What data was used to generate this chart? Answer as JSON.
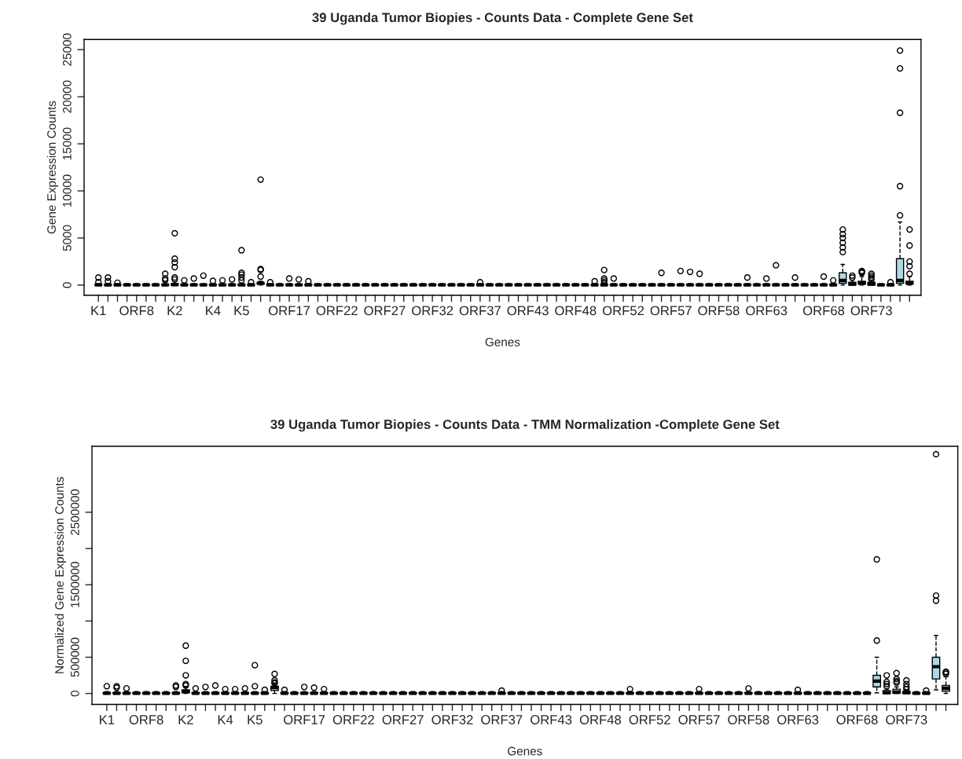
{
  "chart_data": [
    {
      "type": "box",
      "title": "39 Uganda Tumor Biopies - Counts Data - Complete Gene Set",
      "xlabel": "Genes",
      "ylabel": "Gene Expression Counts",
      "categories": [
        "K1",
        null,
        null,
        null,
        "ORF8",
        null,
        null,
        null,
        "K2",
        null,
        null,
        null,
        "K4",
        null,
        null,
        "K5",
        null,
        null,
        null,
        null,
        "ORF17",
        null,
        null,
        null,
        null,
        "ORF22",
        null,
        null,
        null,
        null,
        "ORF27",
        null,
        null,
        null,
        null,
        "ORF32",
        null,
        null,
        null,
        null,
        "ORF37",
        null,
        null,
        null,
        null,
        "ORF43",
        null,
        null,
        null,
        null,
        "ORF48",
        null,
        null,
        null,
        null,
        "ORF52",
        null,
        null,
        null,
        null,
        "ORF57",
        null,
        null,
        null,
        null,
        "ORF58",
        null,
        null,
        null,
        null,
        "ORF63",
        null,
        null,
        null,
        null,
        null,
        "ORF68",
        null,
        null,
        null,
        null,
        "ORF73",
        null,
        null,
        null,
        null
      ],
      "ylim": [
        -1080,
        26080
      ],
      "yticks": [
        0,
        5000,
        10000,
        15000,
        20000,
        25000
      ],
      "series": [
        {
          "color": "#add8e6",
          "boxes": [
            {
              "low": 0,
              "q1": 0,
              "median": 20,
              "q3": 60,
              "high": 150,
              "outliers": [
                800,
                300
              ]
            },
            {
              "low": 0,
              "q1": 0,
              "median": 20,
              "q3": 60,
              "high": 150,
              "outliers": [
                800,
                400
              ]
            },
            {
              "low": 0,
              "q1": 0,
              "median": 20,
              "q3": 60,
              "high": 150,
              "outliers": [
                250
              ]
            },
            {
              "low": 0,
              "q1": 0,
              "median": 20,
              "q3": 60,
              "high": 150
            },
            {
              "low": 0,
              "q1": 0,
              "median": 20,
              "q3": 60,
              "high": 150
            },
            {
              "low": 0,
              "q1": 0,
              "median": 20,
              "q3": 60,
              "high": 150
            },
            {
              "low": 0,
              "q1": 0,
              "median": 20,
              "q3": 60,
              "high": 150
            },
            {
              "low": 0,
              "q1": 0,
              "median": 20,
              "q3": 60,
              "high": 300,
              "outliers": [
                1200,
                700,
                500
              ]
            },
            {
              "low": 0,
              "q1": 0,
              "median": 40,
              "q3": 150,
              "high": 350,
              "outliers": [
                5500,
                2800,
                2400,
                1900,
                800,
                600
              ]
            },
            {
              "low": 0,
              "q1": 0,
              "median": 20,
              "q3": 60,
              "high": 150,
              "outliers": [
                500
              ]
            },
            {
              "low": 0,
              "q1": 0,
              "median": 20,
              "q3": 60,
              "high": 150,
              "outliers": [
                700
              ]
            },
            {
              "low": 0,
              "q1": 0,
              "median": 20,
              "q3": 60,
              "high": 150,
              "outliers": [
                1000
              ]
            },
            {
              "low": 0,
              "q1": 0,
              "median": 20,
              "q3": 60,
              "high": 150,
              "outliers": [
                450
              ]
            },
            {
              "low": 0,
              "q1": 0,
              "median": 20,
              "q3": 60,
              "high": 150,
              "outliers": [
                500
              ]
            },
            {
              "low": 0,
              "q1": 0,
              "median": 20,
              "q3": 60,
              "high": 150,
              "outliers": [
                600
              ]
            },
            {
              "low": 0,
              "q1": 0,
              "median": 20,
              "q3": 60,
              "high": 150,
              "outliers": [
                3700,
                1300,
                1100,
                800,
                500
              ]
            },
            {
              "low": 0,
              "q1": 0,
              "median": 20,
              "q3": 60,
              "high": 150,
              "outliers": [
                300
              ]
            },
            {
              "low": 0,
              "q1": 100,
              "median": 200,
              "q3": 250,
              "high": 400,
              "outliers": [
                11200,
                1700,
                1600,
                900
              ]
            },
            {
              "low": 0,
              "q1": 0,
              "median": 20,
              "q3": 60,
              "high": 150,
              "outliers": [
                300
              ]
            },
            {
              "low": 0,
              "q1": 0,
              "median": 20,
              "q3": 60,
              "high": 150
            },
            {
              "low": 0,
              "q1": 0,
              "median": 20,
              "q3": 60,
              "high": 150,
              "outliers": [
                700
              ]
            },
            {
              "low": 0,
              "q1": 0,
              "median": 20,
              "q3": 60,
              "high": 150,
              "outliers": [
                600
              ]
            },
            {
              "low": 0,
              "q1": 0,
              "median": 20,
              "q3": 60,
              "high": 150,
              "outliers": [
                400
              ]
            },
            {
              "low": 0,
              "q1": 0,
              "median": 20,
              "q3": 60,
              "high": 150
            },
            {
              "low": 0,
              "q1": 0,
              "median": 20,
              "q3": 60,
              "high": 150
            },
            {
              "low": 0,
              "q1": 0,
              "median": 20,
              "q3": 60,
              "high": 150
            },
            {
              "low": 0,
              "q1": 0,
              "median": 20,
              "q3": 60,
              "high": 150
            },
            {
              "low": 0,
              "q1": 0,
              "median": 20,
              "q3": 60,
              "high": 150
            },
            {
              "low": 0,
              "q1": 0,
              "median": 20,
              "q3": 60,
              "high": 150
            },
            {
              "low": 0,
              "q1": 0,
              "median": 20,
              "q3": 60,
              "high": 150
            },
            {
              "low": 0,
              "q1": 0,
              "median": 20,
              "q3": 60,
              "high": 150
            },
            {
              "low": 0,
              "q1": 0,
              "median": 20,
              "q3": 60,
              "high": 150
            },
            {
              "low": 0,
              "q1": 0,
              "median": 20,
              "q3": 60,
              "high": 150
            },
            {
              "low": 0,
              "q1": 0,
              "median": 20,
              "q3": 60,
              "high": 150
            },
            {
              "low": 0,
              "q1": 0,
              "median": 20,
              "q3": 60,
              "high": 150
            },
            {
              "low": 0,
              "q1": 0,
              "median": 20,
              "q3": 60,
              "high": 150
            },
            {
              "low": 0,
              "q1": 0,
              "median": 20,
              "q3": 60,
              "high": 150
            },
            {
              "low": 0,
              "q1": 0,
              "median": 20,
              "q3": 60,
              "high": 150
            },
            {
              "low": 0,
              "q1": 0,
              "median": 20,
              "q3": 60,
              "high": 150
            },
            {
              "low": 0,
              "q1": 0,
              "median": 20,
              "q3": 60,
              "high": 150
            },
            {
              "low": 0,
              "q1": 0,
              "median": 20,
              "q3": 60,
              "high": 150,
              "outliers": [
                300
              ]
            },
            {
              "low": 0,
              "q1": 0,
              "median": 20,
              "q3": 60,
              "high": 150
            },
            {
              "low": 0,
              "q1": 0,
              "median": 20,
              "q3": 60,
              "high": 150
            },
            {
              "low": 0,
              "q1": 0,
              "median": 20,
              "q3": 60,
              "high": 150
            },
            {
              "low": 0,
              "q1": 0,
              "median": 20,
              "q3": 60,
              "high": 150
            },
            {
              "low": 0,
              "q1": 0,
              "median": 20,
              "q3": 60,
              "high": 150
            },
            {
              "low": 0,
              "q1": 0,
              "median": 20,
              "q3": 60,
              "high": 150
            },
            {
              "low": 0,
              "q1": 0,
              "median": 20,
              "q3": 60,
              "high": 150
            },
            {
              "low": 0,
              "q1": 0,
              "median": 20,
              "q3": 60,
              "high": 150
            },
            {
              "low": 0,
              "q1": 0,
              "median": 20,
              "q3": 60,
              "high": 150
            },
            {
              "low": 0,
              "q1": 0,
              "median": 20,
              "q3": 60,
              "high": 150
            },
            {
              "low": 0,
              "q1": 0,
              "median": 20,
              "q3": 60,
              "high": 150
            },
            {
              "low": 0,
              "q1": 0,
              "median": 20,
              "q3": 60,
              "high": 150,
              "outliers": [
                400
              ]
            },
            {
              "low": 0,
              "q1": 0,
              "median": 20,
              "q3": 60,
              "high": 150,
              "outliers": [
                1600,
                700,
                500,
                300
              ]
            },
            {
              "low": 0,
              "q1": 0,
              "median": 20,
              "q3": 60,
              "high": 150,
              "outliers": [
                700
              ]
            },
            {
              "low": 0,
              "q1": 0,
              "median": 20,
              "q3": 60,
              "high": 150
            },
            {
              "low": 0,
              "q1": 0,
              "median": 20,
              "q3": 60,
              "high": 150
            },
            {
              "low": 0,
              "q1": 0,
              "median": 20,
              "q3": 60,
              "high": 150
            },
            {
              "low": 0,
              "q1": 0,
              "median": 20,
              "q3": 60,
              "high": 150
            },
            {
              "low": 0,
              "q1": 0,
              "median": 20,
              "q3": 60,
              "high": 150,
              "outliers": [
                1300
              ]
            },
            {
              "low": 0,
              "q1": 0,
              "median": 20,
              "q3": 60,
              "high": 150
            },
            {
              "low": 0,
              "q1": 0,
              "median": 20,
              "q3": 60,
              "high": 150,
              "outliers": [
                1500
              ]
            },
            {
              "low": 0,
              "q1": 0,
              "median": 20,
              "q3": 60,
              "high": 150,
              "outliers": [
                1400
              ]
            },
            {
              "low": 0,
              "q1": 0,
              "median": 20,
              "q3": 60,
              "high": 150,
              "outliers": [
                1200
              ]
            },
            {
              "low": 0,
              "q1": 0,
              "median": 20,
              "q3": 60,
              "high": 150
            },
            {
              "low": 0,
              "q1": 0,
              "median": 20,
              "q3": 60,
              "high": 150
            },
            {
              "low": 0,
              "q1": 0,
              "median": 20,
              "q3": 60,
              "high": 150
            },
            {
              "low": 0,
              "q1": 0,
              "median": 20,
              "q3": 60,
              "high": 150
            },
            {
              "low": 0,
              "q1": 0,
              "median": 20,
              "q3": 60,
              "high": 150,
              "outliers": [
                800
              ]
            },
            {
              "low": 0,
              "q1": 0,
              "median": 20,
              "q3": 60,
              "high": 150
            },
            {
              "low": 0,
              "q1": 0,
              "median": 20,
              "q3": 60,
              "high": 150,
              "outliers": [
                700
              ]
            },
            {
              "low": 0,
              "q1": 0,
              "median": 20,
              "q3": 60,
              "high": 150,
              "outliers": [
                2100
              ]
            },
            {
              "low": 0,
              "q1": 0,
              "median": 20,
              "q3": 60,
              "high": 150
            },
            {
              "low": 0,
              "q1": 0,
              "median": 20,
              "q3": 60,
              "high": 150,
              "outliers": [
                800
              ]
            },
            {
              "low": 0,
              "q1": 0,
              "median": 20,
              "q3": 60,
              "high": 150
            },
            {
              "low": 0,
              "q1": 0,
              "median": 20,
              "q3": 60,
              "high": 150
            },
            {
              "low": 0,
              "q1": 0,
              "median": 20,
              "q3": 60,
              "high": 150,
              "outliers": [
                900
              ]
            },
            {
              "low": 0,
              "q1": 0,
              "median": 20,
              "q3": 60,
              "high": 150,
              "outliers": [
                500
              ]
            },
            {
              "low": 0,
              "q1": 200,
              "median": 500,
              "q3": 1300,
              "high": 2200,
              "outliers": [
                3500,
                4000,
                4500,
                5000,
                5400,
                5900
              ]
            },
            {
              "low": 0,
              "q1": 0,
              "median": 100,
              "q3": 300,
              "high": 500,
              "outliers": [
                1000,
                800
              ]
            },
            {
              "low": 0,
              "q1": 100,
              "median": 200,
              "q3": 400,
              "high": 900,
              "outliers": [
                1500,
                1400,
                1300
              ]
            },
            {
              "low": 0,
              "q1": 0,
              "median": 100,
              "q3": 300,
              "high": 500,
              "outliers": [
                1200,
                1000,
                800,
                600
              ]
            },
            {
              "low": 0,
              "q1": 0,
              "median": 20,
              "q3": 60,
              "high": 150
            },
            {
              "low": 0,
              "q1": 0,
              "median": 20,
              "q3": 60,
              "high": 150,
              "outliers": [
                300
              ]
            },
            {
              "low": 0,
              "q1": 200,
              "median": 500,
              "q3": 2800,
              "high": 6700,
              "outliers": [
                7400,
                10500,
                18300,
                23000,
                24900
              ]
            },
            {
              "low": 0,
              "q1": 100,
              "median": 200,
              "q3": 400,
              "high": 900,
              "outliers": [
                1200,
                2000,
                2500,
                4200,
                5900
              ]
            }
          ]
        }
      ]
    },
    {
      "type": "box",
      "title": "39 Uganda Tumor Biopies - Counts Data - TMM Normalization -Complete Gene Set",
      "xlabel": "Genes",
      "ylabel": "Normalized Gene Expression Counts",
      "categories": [
        "K1",
        null,
        null,
        null,
        "ORF8",
        null,
        null,
        null,
        "K2",
        null,
        null,
        null,
        "K4",
        null,
        null,
        "K5",
        null,
        null,
        null,
        null,
        "ORF17",
        null,
        null,
        null,
        null,
        "ORF22",
        null,
        null,
        null,
        null,
        "ORF27",
        null,
        null,
        null,
        null,
        "ORF32",
        null,
        null,
        null,
        null,
        "ORF37",
        null,
        null,
        null,
        null,
        "ORF43",
        null,
        null,
        null,
        null,
        "ORF48",
        null,
        null,
        null,
        null,
        "ORF52",
        null,
        null,
        null,
        null,
        "ORF57",
        null,
        null,
        null,
        null,
        "ORF58",
        null,
        null,
        null,
        null,
        "ORF63",
        null,
        null,
        null,
        null,
        null,
        "ORF68",
        null,
        null,
        null,
        null,
        "ORF73",
        null,
        null,
        null,
        null
      ],
      "ylim": [
        -150000,
        3410000
      ],
      "yticks": [
        0,
        500000,
        {
          "value": 1000000,
          "label": null
        },
        1500000,
        {
          "value": 2000000,
          "label": null
        },
        2500000
      ],
      "series": [
        {
          "color": "#add8e6",
          "boxes": [
            {
              "low": 0,
              "q1": 0,
              "median": 3000,
              "q3": 10000,
              "high": 25000,
              "outliers": [
                100000
              ]
            },
            {
              "low": 0,
              "q1": 0,
              "median": 3000,
              "q3": 10000,
              "high": 25000,
              "outliers": [
                100000,
                80000
              ]
            },
            {
              "low": 0,
              "q1": 0,
              "median": 3000,
              "q3": 10000,
              "high": 25000,
              "outliers": [
                70000
              ]
            },
            {
              "low": 0,
              "q1": 0,
              "median": 3000,
              "q3": 10000,
              "high": 25000
            },
            {
              "low": 0,
              "q1": 0,
              "median": 3000,
              "q3": 10000,
              "high": 25000
            },
            {
              "low": 0,
              "q1": 0,
              "median": 3000,
              "q3": 10000,
              "high": 25000
            },
            {
              "low": 0,
              "q1": 0,
              "median": 3000,
              "q3": 10000,
              "high": 25000
            },
            {
              "low": 0,
              "q1": 0,
              "median": 3000,
              "q3": 10000,
              "high": 25000,
              "outliers": [
                110000,
                90000
              ]
            },
            {
              "low": 0,
              "q1": 10000,
              "median": 30000,
              "q3": 50000,
              "high": 90000,
              "outliers": [
                660000,
                450000,
                250000,
                130000,
                110000
              ]
            },
            {
              "low": 0,
              "q1": 0,
              "median": 3000,
              "q3": 10000,
              "high": 25000,
              "outliers": [
                70000
              ]
            },
            {
              "low": 0,
              "q1": 0,
              "median": 3000,
              "q3": 10000,
              "high": 25000,
              "outliers": [
                90000
              ]
            },
            {
              "low": 0,
              "q1": 0,
              "median": 3000,
              "q3": 10000,
              "high": 25000,
              "outliers": [
                110000
              ]
            },
            {
              "low": 0,
              "q1": 0,
              "median": 3000,
              "q3": 10000,
              "high": 25000,
              "outliers": [
                60000
              ]
            },
            {
              "low": 0,
              "q1": 0,
              "median": 3000,
              "q3": 10000,
              "high": 25000,
              "outliers": [
                60000
              ]
            },
            {
              "low": 0,
              "q1": 0,
              "median": 3000,
              "q3": 10000,
              "high": 25000,
              "outliers": [
                70000
              ]
            },
            {
              "low": 0,
              "q1": 0,
              "median": 3000,
              "q3": 10000,
              "high": 25000,
              "outliers": [
                390000,
                100000
              ]
            },
            {
              "low": 0,
              "q1": 0,
              "median": 3000,
              "q3": 10000,
              "high": 25000,
              "outliers": [
                50000
              ]
            },
            {
              "low": 0,
              "q1": 40000,
              "median": 80000,
              "q3": 100000,
              "high": 130000,
              "outliers": [
                270000,
                180000,
                150000,
                140000
              ]
            },
            {
              "low": 0,
              "q1": 0,
              "median": 3000,
              "q3": 10000,
              "high": 25000,
              "outliers": [
                50000
              ]
            },
            {
              "low": 0,
              "q1": 0,
              "median": 3000,
              "q3": 10000,
              "high": 25000
            },
            {
              "low": 0,
              "q1": 0,
              "median": 3000,
              "q3": 10000,
              "high": 25000,
              "outliers": [
                90000
              ]
            },
            {
              "low": 0,
              "q1": 0,
              "median": 3000,
              "q3": 10000,
              "high": 25000,
              "outliers": [
                80000
              ]
            },
            {
              "low": 0,
              "q1": 0,
              "median": 3000,
              "q3": 10000,
              "high": 25000,
              "outliers": [
                60000
              ]
            },
            {
              "low": 0,
              "q1": 0,
              "median": 3000,
              "q3": 10000,
              "high": 25000
            },
            {
              "low": 0,
              "q1": 0,
              "median": 3000,
              "q3": 10000,
              "high": 25000
            },
            {
              "low": 0,
              "q1": 0,
              "median": 3000,
              "q3": 10000,
              "high": 25000
            },
            {
              "low": 0,
              "q1": 0,
              "median": 3000,
              "q3": 10000,
              "high": 25000
            },
            {
              "low": 0,
              "q1": 0,
              "median": 3000,
              "q3": 10000,
              "high": 25000
            },
            {
              "low": 0,
              "q1": 0,
              "median": 3000,
              "q3": 10000,
              "high": 25000
            },
            {
              "low": 0,
              "q1": 0,
              "median": 3000,
              "q3": 10000,
              "high": 25000
            },
            {
              "low": 0,
              "q1": 0,
              "median": 3000,
              "q3": 10000,
              "high": 25000
            },
            {
              "low": 0,
              "q1": 0,
              "median": 3000,
              "q3": 10000,
              "high": 25000
            },
            {
              "low": 0,
              "q1": 0,
              "median": 3000,
              "q3": 10000,
              "high": 25000
            },
            {
              "low": 0,
              "q1": 0,
              "median": 3000,
              "q3": 10000,
              "high": 25000
            },
            {
              "low": 0,
              "q1": 0,
              "median": 3000,
              "q3": 10000,
              "high": 25000
            },
            {
              "low": 0,
              "q1": 0,
              "median": 3000,
              "q3": 10000,
              "high": 25000
            },
            {
              "low": 0,
              "q1": 0,
              "median": 3000,
              "q3": 10000,
              "high": 25000
            },
            {
              "low": 0,
              "q1": 0,
              "median": 3000,
              "q3": 10000,
              "high": 25000
            },
            {
              "low": 0,
              "q1": 0,
              "median": 3000,
              "q3": 10000,
              "high": 25000
            },
            {
              "low": 0,
              "q1": 0,
              "median": 3000,
              "q3": 10000,
              "high": 25000
            },
            {
              "low": 0,
              "q1": 0,
              "median": 3000,
              "q3": 10000,
              "high": 25000,
              "outliers": [
                40000
              ]
            },
            {
              "low": 0,
              "q1": 0,
              "median": 3000,
              "q3": 10000,
              "high": 25000
            },
            {
              "low": 0,
              "q1": 0,
              "median": 3000,
              "q3": 10000,
              "high": 25000
            },
            {
              "low": 0,
              "q1": 0,
              "median": 3000,
              "q3": 10000,
              "high": 25000
            },
            {
              "low": 0,
              "q1": 0,
              "median": 3000,
              "q3": 10000,
              "high": 25000
            },
            {
              "low": 0,
              "q1": 0,
              "median": 3000,
              "q3": 10000,
              "high": 25000
            },
            {
              "low": 0,
              "q1": 0,
              "median": 3000,
              "q3": 10000,
              "high": 25000
            },
            {
              "low": 0,
              "q1": 0,
              "median": 3000,
              "q3": 10000,
              "high": 25000
            },
            {
              "low": 0,
              "q1": 0,
              "median": 3000,
              "q3": 10000,
              "high": 25000
            },
            {
              "low": 0,
              "q1": 0,
              "median": 3000,
              "q3": 10000,
              "high": 25000
            },
            {
              "low": 0,
              "q1": 0,
              "median": 3000,
              "q3": 10000,
              "high": 25000
            },
            {
              "low": 0,
              "q1": 0,
              "median": 3000,
              "q3": 10000,
              "high": 25000
            },
            {
              "low": 0,
              "q1": 0,
              "median": 3000,
              "q3": 10000,
              "high": 25000
            },
            {
              "low": 0,
              "q1": 0,
              "median": 3000,
              "q3": 10000,
              "high": 25000,
              "outliers": [
                60000
              ]
            },
            {
              "low": 0,
              "q1": 0,
              "median": 3000,
              "q3": 10000,
              "high": 25000
            },
            {
              "low": 0,
              "q1": 0,
              "median": 3000,
              "q3": 10000,
              "high": 25000
            },
            {
              "low": 0,
              "q1": 0,
              "median": 3000,
              "q3": 10000,
              "high": 25000
            },
            {
              "low": 0,
              "q1": 0,
              "median": 3000,
              "q3": 10000,
              "high": 25000
            },
            {
              "low": 0,
              "q1": 0,
              "median": 3000,
              "q3": 10000,
              "high": 25000
            },
            {
              "low": 0,
              "q1": 0,
              "median": 3000,
              "q3": 10000,
              "high": 25000
            },
            {
              "low": 0,
              "q1": 0,
              "median": 3000,
              "q3": 10000,
              "high": 25000,
              "outliers": [
                60000
              ]
            },
            {
              "low": 0,
              "q1": 0,
              "median": 3000,
              "q3": 10000,
              "high": 25000
            },
            {
              "low": 0,
              "q1": 0,
              "median": 3000,
              "q3": 10000,
              "high": 25000
            },
            {
              "low": 0,
              "q1": 0,
              "median": 3000,
              "q3": 10000,
              "high": 25000
            },
            {
              "low": 0,
              "q1": 0,
              "median": 3000,
              "q3": 10000,
              "high": 25000
            },
            {
              "low": 0,
              "q1": 0,
              "median": 3000,
              "q3": 10000,
              "high": 25000,
              "outliers": [
                70000
              ]
            },
            {
              "low": 0,
              "q1": 0,
              "median": 3000,
              "q3": 10000,
              "high": 25000
            },
            {
              "low": 0,
              "q1": 0,
              "median": 3000,
              "q3": 10000,
              "high": 25000
            },
            {
              "low": 0,
              "q1": 0,
              "median": 3000,
              "q3": 10000,
              "high": 25000
            },
            {
              "low": 0,
              "q1": 0,
              "median": 3000,
              "q3": 10000,
              "high": 25000
            },
            {
              "low": 0,
              "q1": 0,
              "median": 3000,
              "q3": 10000,
              "high": 25000,
              "outliers": [
                50000
              ]
            },
            {
              "low": 0,
              "q1": 0,
              "median": 3000,
              "q3": 10000,
              "high": 25000
            },
            {
              "low": 0,
              "q1": 0,
              "median": 3000,
              "q3": 10000,
              "high": 25000
            },
            {
              "low": 0,
              "q1": 0,
              "median": 3000,
              "q3": 10000,
              "high": 25000
            },
            {
              "low": 0,
              "q1": 0,
              "median": 3000,
              "q3": 10000,
              "high": 25000
            },
            {
              "low": 0,
              "q1": 0,
              "median": 3000,
              "q3": 10000,
              "high": 25000
            },
            {
              "low": 0,
              "q1": 0,
              "median": 3000,
              "q3": 10000,
              "high": 25000
            },
            {
              "low": 0,
              "q1": 0,
              "median": 3000,
              "q3": 10000,
              "high": 25000
            },
            {
              "low": 10000,
              "q1": 90000,
              "median": 170000,
              "q3": 250000,
              "high": 500000,
              "outliers": [
                1850000,
                730000
              ]
            },
            {
              "low": 0,
              "q1": 0,
              "median": 10000,
              "q3": 40000,
              "high": 60000,
              "outliers": [
                250000,
                160000,
                130000,
                100000
              ]
            },
            {
              "low": 0,
              "q1": 0,
              "median": 20000,
              "q3": 60000,
              "high": 90000,
              "outliers": [
                280000,
                200000,
                170000,
                150000
              ]
            },
            {
              "low": 0,
              "q1": 0,
              "median": 10000,
              "q3": 30000,
              "high": 50000,
              "outliers": [
                180000,
                130000,
                90000,
                60000
              ]
            },
            {
              "low": 0,
              "q1": 0,
              "median": 3000,
              "q3": 10000,
              "high": 25000
            },
            {
              "low": 0,
              "q1": 0,
              "median": 3000,
              "q3": 10000,
              "high": 25000,
              "outliers": [
                40000
              ]
            },
            {
              "low": 50000,
              "q1": 200000,
              "median": 370000,
              "q3": 500000,
              "high": 800000,
              "outliers": [
                1280000,
                1350000,
                3300000
              ]
            },
            {
              "low": 0,
              "q1": 30000,
              "median": 70000,
              "q3": 110000,
              "high": 230000,
              "outliers": [
                270000,
                290000,
                300000
              ]
            }
          ]
        }
      ]
    }
  ]
}
